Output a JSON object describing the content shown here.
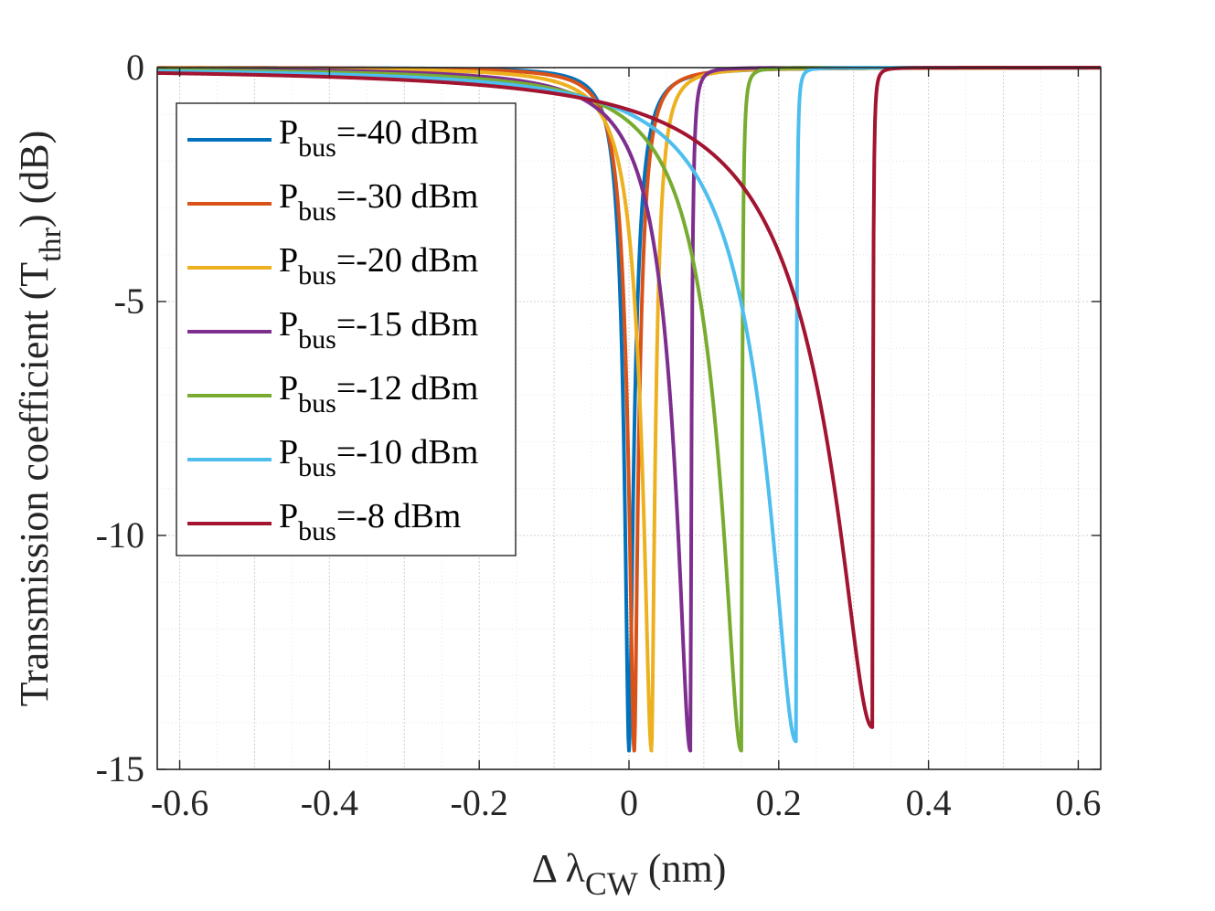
{
  "chart_data": {
    "type": "line",
    "xlabel": {
      "prefix": "Δ λ",
      "sub": "CW",
      "suffix": " (nm)"
    },
    "ylabel": {
      "prefix": "Transmission coefficient (T",
      "sub": "thr",
      "suffix": ") (dB)"
    },
    "xlim": [
      -0.63,
      0.63
    ],
    "ylim": [
      -15,
      0
    ],
    "xticks": [
      -0.6,
      -0.4,
      -0.2,
      0,
      0.2,
      0.4,
      0.6
    ],
    "xtick_labels": [
      "-0.6",
      "-0.4",
      "-0.2",
      "0",
      "0.2",
      "0.4",
      "0.6"
    ],
    "yticks": [
      0,
      -5,
      -10,
      -15
    ],
    "ytick_labels": [
      "0",
      "-5",
      "-10",
      "-15"
    ],
    "grid": true,
    "legend_position": "top-left",
    "series": [
      {
        "name": "P_bus=-40 dBm",
        "label_main": "P",
        "label_sub": "bus",
        "label_rest": "=-40 dBm",
        "color": "#0072BD",
        "x0": 0.0,
        "min_db": -14.6,
        "left_width": 0.018,
        "right_width": 0.018
      },
      {
        "name": "P_bus=-30 dBm",
        "label_main": "P",
        "label_sub": "bus",
        "label_rest": "=-30 dBm",
        "color": "#D95319",
        "x0": 0.007,
        "min_db": -14.6,
        "left_width": 0.022,
        "right_width": 0.016
      },
      {
        "name": "P_bus=-20 dBm",
        "label_main": "P",
        "label_sub": "bus",
        "label_rest": "=-20 dBm",
        "color": "#EDB120",
        "x0": 0.03,
        "min_db": -14.6,
        "left_width": 0.035,
        "right_width": 0.014
      },
      {
        "name": "P_bus=-15 dBm",
        "label_main": "P",
        "label_sub": "bus",
        "label_rest": "=-15 dBm",
        "color": "#7E2F8E",
        "x0": 0.082,
        "min_db": -14.6,
        "left_width": 0.06,
        "right_width": 0.004
      },
      {
        "name": "P_bus=-12 dBm",
        "label_main": "P",
        "label_sub": "bus",
        "label_rest": "=-12 dBm",
        "color": "#77AC30",
        "x0": 0.15,
        "min_db": -14.6,
        "left_width": 0.085,
        "right_width": 0.003
      },
      {
        "name": "P_bus=-10 dBm",
        "label_main": "P",
        "label_sub": "bus",
        "label_rest": "=-10 dBm",
        "color": "#4DBEEE",
        "x0": 0.223,
        "min_db": -14.4,
        "left_width": 0.115,
        "right_width": 0.002
      },
      {
        "name": "P_bus=-8 dBm",
        "label_main": "P",
        "label_sub": "bus",
        "label_rest": "=-8 dBm",
        "color": "#A2142F",
        "x0": 0.325,
        "min_db": -14.1,
        "left_width": 0.16,
        "right_width": 0.002
      }
    ]
  }
}
